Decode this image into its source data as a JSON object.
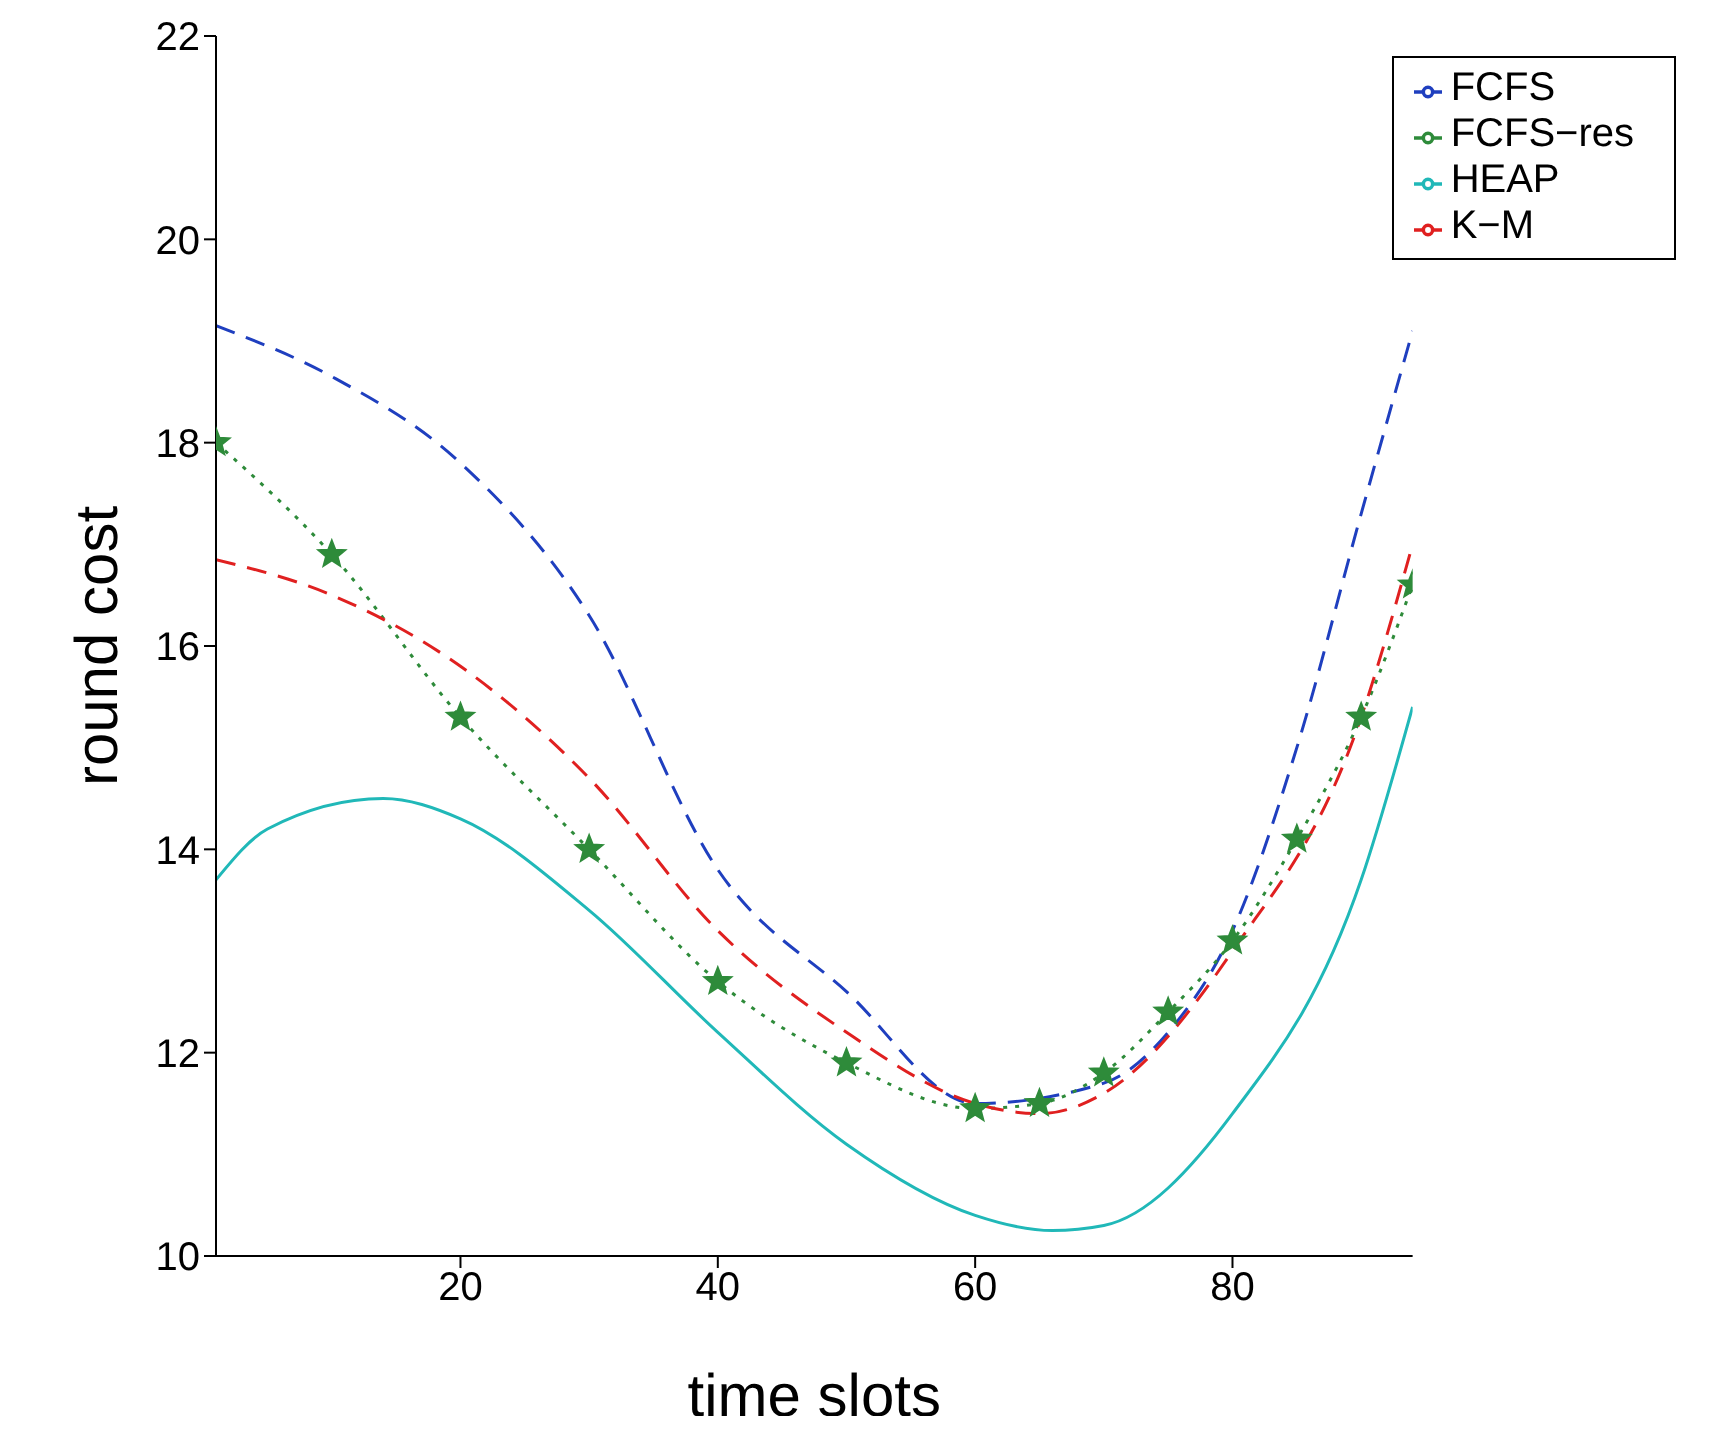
{
  "chart_data": {
    "type": "line",
    "xlabel": "time slots",
    "ylabel": "round cost",
    "xlim": [
      1,
      94
    ],
    "xticks": [
      20,
      40,
      60,
      80
    ],
    "ylim": [
      10,
      22
    ],
    "yticks": [
      10,
      12,
      14,
      16,
      18,
      20,
      22
    ],
    "legend": "top right",
    "series": [
      {
        "name": "FCFS",
        "color": "#1f3fbf",
        "line_style": "dashed",
        "marker": "none",
        "x": [
          1,
          10,
          20,
          30,
          40,
          50,
          60,
          70,
          75,
          80,
          85,
          90,
          94
        ],
        "values": [
          19.15,
          18.65,
          17.8,
          16.3,
          13.8,
          12.6,
          11.5,
          11.7,
          12.2,
          13.2,
          15.0,
          17.3,
          19.1
        ]
      },
      {
        "name": "FCFS−res",
        "color": "#2e8b3a",
        "line_style": "dotted",
        "marker": "star",
        "x": [
          1,
          10,
          20,
          30,
          40,
          50,
          60,
          65,
          70,
          75,
          80,
          85,
          90,
          94
        ],
        "values": [
          18.0,
          16.9,
          15.3,
          14.0,
          12.7,
          11.9,
          11.45,
          11.5,
          11.8,
          12.4,
          13.1,
          14.1,
          15.3,
          16.6
        ]
      },
      {
        "name": "K−M",
        "color": "#e02020",
        "line_style": "dashed",
        "marker": "none",
        "x": [
          1,
          10,
          20,
          30,
          40,
          50,
          60,
          65,
          70,
          80,
          90,
          94
        ],
        "values": [
          16.85,
          16.5,
          15.8,
          14.7,
          13.2,
          12.2,
          11.5,
          11.4,
          11.6,
          13.0,
          15.3,
          17.0
        ]
      },
      {
        "name": "HEAP",
        "color": "#20b8b8",
        "line_style": "solid",
        "marker": "none",
        "x": [
          1,
          5,
          14,
          20,
          30,
          40,
          50,
          60,
          66,
          70,
          80,
          90,
          94
        ],
        "values": [
          13.7,
          14.2,
          14.5,
          14.3,
          13.4,
          12.2,
          11.1,
          10.4,
          10.25,
          10.3,
          11.4,
          13.7,
          15.4
        ]
      }
    ]
  }
}
